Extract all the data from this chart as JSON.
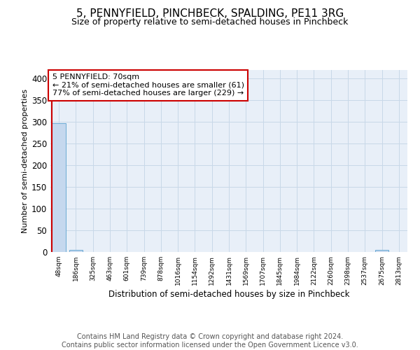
{
  "title": "5, PENNYFIELD, PINCHBECK, SPALDING, PE11 3RG",
  "subtitle": "Size of property relative to semi-detached houses in Pinchbeck",
  "xlabel": "Distribution of semi-detached houses by size in Pinchbeck",
  "ylabel": "Number of semi-detached properties",
  "categories": [
    "48sqm",
    "186sqm",
    "325sqm",
    "463sqm",
    "601sqm",
    "739sqm",
    "878sqm",
    "1016sqm",
    "1154sqm",
    "1292sqm",
    "1431sqm",
    "1569sqm",
    "1707sqm",
    "1845sqm",
    "1984sqm",
    "2122sqm",
    "2260sqm",
    "2398sqm",
    "2537sqm",
    "2675sqm",
    "2813sqm"
  ],
  "values": [
    297,
    5,
    0,
    0,
    0,
    0,
    0,
    0,
    0,
    0,
    0,
    0,
    0,
    0,
    0,
    0,
    0,
    0,
    0,
    5,
    0
  ],
  "bar_color": "#c5d8ee",
  "bar_edge_color": "#6aaad4",
  "red_line_x": 0.0,
  "annotation_text": "5 PENNYFIELD: 70sqm\n← 21% of semi-detached houses are smaller (61)\n77% of semi-detached houses are larger (229) →",
  "annotation_box_color": "#ffffff",
  "annotation_box_edge_color": "#cc0000",
  "red_line_color": "#cc0000",
  "ylim": [
    0,
    420
  ],
  "yticks": [
    0,
    50,
    100,
    150,
    200,
    250,
    300,
    350,
    400
  ],
  "grid_color": "#c8d8e8",
  "background_color": "#e8eff8",
  "footer_text": "Contains HM Land Registry data © Crown copyright and database right 2024.\nContains public sector information licensed under the Open Government Licence v3.0.",
  "title_fontsize": 11,
  "subtitle_fontsize": 9,
  "annotation_fontsize": 8,
  "footer_fontsize": 7,
  "ylabel_fontsize": 8,
  "xlabel_fontsize": 8.5
}
